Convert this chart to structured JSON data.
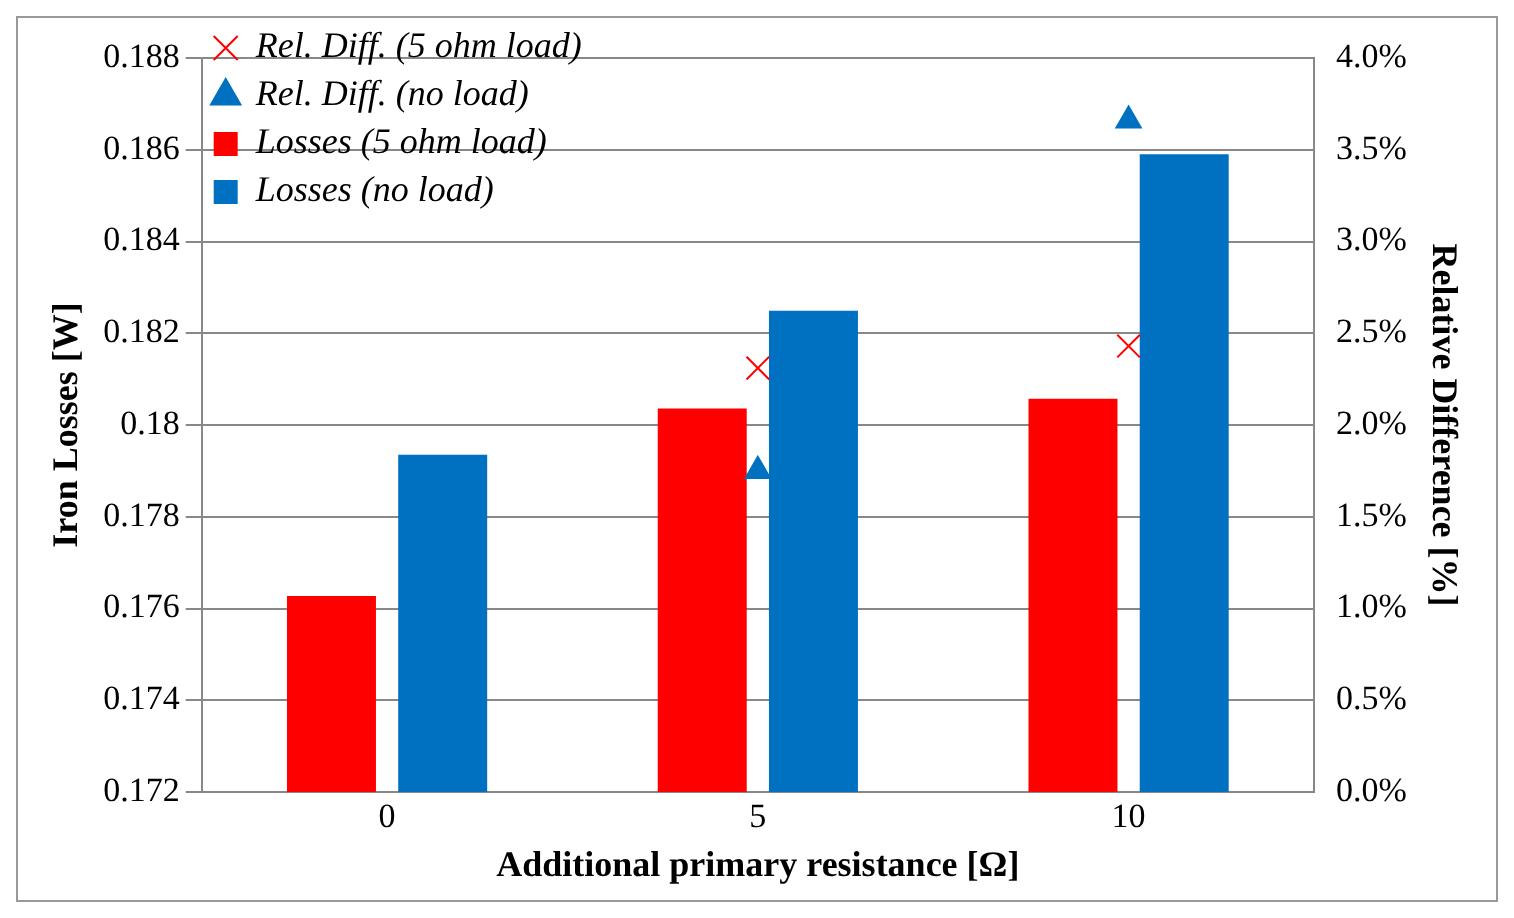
{
  "chart_data": {
    "type": "bar",
    "xlabel": "Additional primary resistance [Ω]",
    "ylabel": "Iron Losses [W]",
    "y2label": "Relative Difference [%]",
    "categories": [
      "0",
      "5",
      "10"
    ],
    "series": [
      {
        "name": "Losses (5 ohm load)",
        "color": "#ff0000",
        "values": [
          0.17627,
          0.18036,
          0.18057
        ]
      },
      {
        "name": "Losses (no load)",
        "color": "#0070c0",
        "values": [
          0.17935,
          0.18249,
          0.1859
        ]
      },
      {
        "name": "Rel. Diff. (5 ohm load)",
        "type": "scatter",
        "axis": "y2",
        "marker": "cross",
        "color": "#ff0000",
        "x": [
          "0",
          "5",
          "10"
        ],
        "values": [
          null,
          2.31,
          2.43
        ]
      },
      {
        "name": "Rel. Diff. (no load)",
        "type": "scatter",
        "axis": "y2",
        "marker": "triangle",
        "color": "#0070c0",
        "x": [
          "0",
          "5",
          "10"
        ],
        "values": [
          null,
          1.75,
          3.66
        ]
      }
    ],
    "ylim": [
      0.172,
      0.188
    ],
    "yticks": [
      0.172,
      0.174,
      0.176,
      0.178,
      0.18,
      0.182,
      0.184,
      0.186,
      0.188
    ],
    "y2lim": [
      0,
      4
    ],
    "y2ticks": [
      {
        "value": 0,
        "label": "0.0%"
      },
      {
        "value": 0.5,
        "label": "0.5%"
      },
      {
        "value": 1,
        "label": "1.0%"
      },
      {
        "value": 1.5,
        "label": "1.5%"
      },
      {
        "value": 2,
        "label": "2.0%"
      },
      {
        "value": 2.5,
        "label": "2.5%"
      },
      {
        "value": 3,
        "label": "3.0%"
      },
      {
        "value": 3.5,
        "label": "3.5%"
      },
      {
        "value": 4,
        "label": "4.0%"
      }
    ],
    "grid": "y",
    "legend": "top left"
  }
}
